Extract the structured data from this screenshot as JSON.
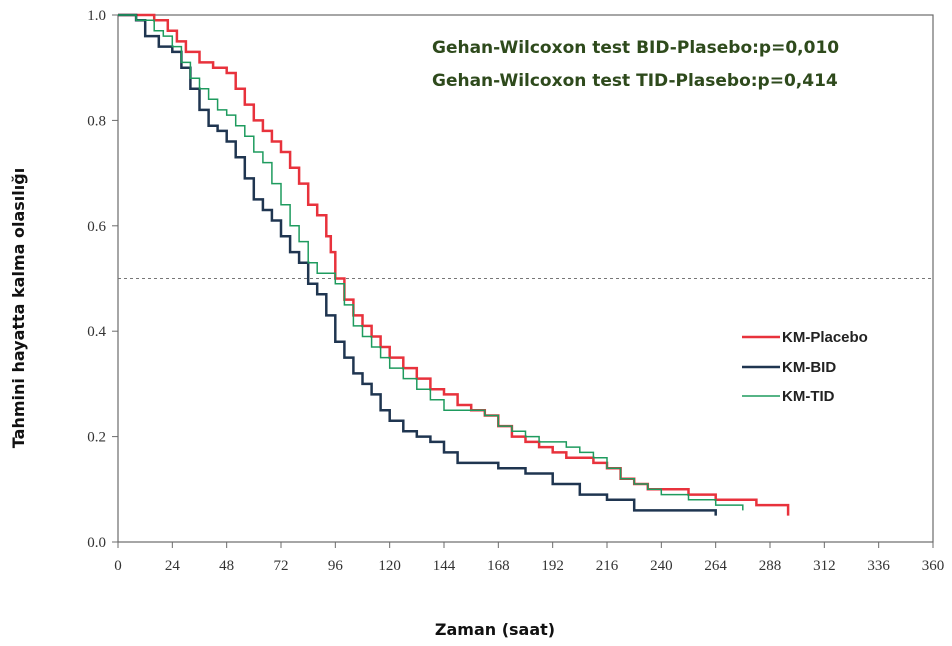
{
  "chart_data": {
    "type": "line",
    "title": "",
    "xlabel": "Zaman (saat)",
    "ylabel": "Tahmini hayatta kalma olasılığı",
    "xlim": [
      0,
      360
    ],
    "ylim": [
      0,
      1
    ],
    "x_ticks": [
      0,
      24,
      48,
      72,
      96,
      120,
      144,
      168,
      192,
      216,
      240,
      264,
      288,
      312,
      336,
      360
    ],
    "x_tick_labels": [
      "0",
      "24",
      "48",
      "72",
      "96",
      "120",
      "144",
      "168",
      "192",
      "216",
      "240",
      "264",
      "288",
      "312",
      "336",
      "360"
    ],
    "y_ticks": [
      0,
      0.2,
      0.4,
      0.6,
      0.8,
      1.0
    ],
    "y_tick_labels": [
      "0.0",
      "0.2",
      "0.4",
      "0.6",
      "0.8",
      "1.0"
    ],
    "reference_line": {
      "y": 0.5,
      "style": "dashed",
      "color": "#777777"
    },
    "annotations": [
      "Gehan-Wilcoxon test BID-Plasebo:p=0,010",
      "Gehan-Wilcoxon test TID-Plasebo:p=0,414"
    ],
    "legend_position": "right",
    "grid": false,
    "series": [
      {
        "name": "KM-Placebo",
        "color": "#e8323c",
        "width": 2.5,
        "x": [
          0,
          8,
          16,
          22,
          26,
          30,
          36,
          42,
          48,
          52,
          56,
          60,
          64,
          68,
          72,
          76,
          80,
          84,
          88,
          92,
          94,
          96,
          100,
          104,
          108,
          112,
          116,
          120,
          126,
          132,
          138,
          144,
          150,
          156,
          162,
          168,
          174,
          180,
          186,
          192,
          198,
          204,
          210,
          216,
          222,
          228,
          234,
          240,
          246,
          252,
          258,
          264,
          270,
          276,
          282,
          288,
          292,
          296
        ],
        "y": [
          1.0,
          1.0,
          0.99,
          0.97,
          0.95,
          0.93,
          0.91,
          0.9,
          0.89,
          0.86,
          0.83,
          0.8,
          0.78,
          0.76,
          0.74,
          0.71,
          0.68,
          0.64,
          0.62,
          0.58,
          0.55,
          0.5,
          0.46,
          0.43,
          0.41,
          0.39,
          0.37,
          0.35,
          0.33,
          0.31,
          0.29,
          0.28,
          0.26,
          0.25,
          0.24,
          0.22,
          0.2,
          0.19,
          0.18,
          0.17,
          0.16,
          0.16,
          0.15,
          0.14,
          0.12,
          0.11,
          0.1,
          0.1,
          0.1,
          0.09,
          0.09,
          0.08,
          0.08,
          0.08,
          0.07,
          0.07,
          0.07,
          0.05
        ]
      },
      {
        "name": "KM-BID",
        "color": "#1f3550",
        "width": 2.5,
        "x": [
          0,
          8,
          12,
          18,
          24,
          28,
          32,
          36,
          40,
          44,
          48,
          52,
          56,
          60,
          64,
          68,
          72,
          76,
          80,
          84,
          88,
          92,
          96,
          100,
          104,
          108,
          112,
          116,
          120,
          126,
          132,
          138,
          144,
          150,
          156,
          162,
          168,
          180,
          192,
          204,
          216,
          228,
          240,
          252,
          264
        ],
        "y": [
          1.0,
          0.99,
          0.96,
          0.94,
          0.93,
          0.9,
          0.86,
          0.82,
          0.79,
          0.78,
          0.76,
          0.73,
          0.69,
          0.65,
          0.63,
          0.61,
          0.58,
          0.55,
          0.53,
          0.49,
          0.47,
          0.43,
          0.38,
          0.35,
          0.32,
          0.3,
          0.28,
          0.25,
          0.23,
          0.21,
          0.2,
          0.19,
          0.17,
          0.15,
          0.15,
          0.15,
          0.14,
          0.13,
          0.11,
          0.09,
          0.08,
          0.06,
          0.06,
          0.06,
          0.05
        ]
      },
      {
        "name": "KM-TID",
        "color": "#1e9b5e",
        "width": 1.5,
        "x": [
          0,
          8,
          16,
          20,
          24,
          28,
          32,
          36,
          40,
          44,
          48,
          52,
          56,
          60,
          64,
          68,
          72,
          76,
          80,
          84,
          88,
          92,
          96,
          100,
          104,
          108,
          112,
          116,
          120,
          126,
          132,
          138,
          144,
          150,
          156,
          162,
          168,
          174,
          180,
          186,
          192,
          198,
          204,
          210,
          216,
          222,
          228,
          234,
          240,
          246,
          252,
          258,
          264,
          270,
          276
        ],
        "y": [
          1.0,
          0.99,
          0.97,
          0.96,
          0.94,
          0.91,
          0.88,
          0.86,
          0.84,
          0.82,
          0.81,
          0.79,
          0.77,
          0.74,
          0.72,
          0.68,
          0.64,
          0.6,
          0.57,
          0.53,
          0.51,
          0.51,
          0.49,
          0.45,
          0.41,
          0.39,
          0.37,
          0.35,
          0.33,
          0.31,
          0.29,
          0.27,
          0.25,
          0.25,
          0.25,
          0.24,
          0.22,
          0.21,
          0.2,
          0.19,
          0.19,
          0.18,
          0.17,
          0.16,
          0.14,
          0.12,
          0.11,
          0.1,
          0.09,
          0.09,
          0.08,
          0.08,
          0.07,
          0.07,
          0.06
        ]
      }
    ]
  }
}
